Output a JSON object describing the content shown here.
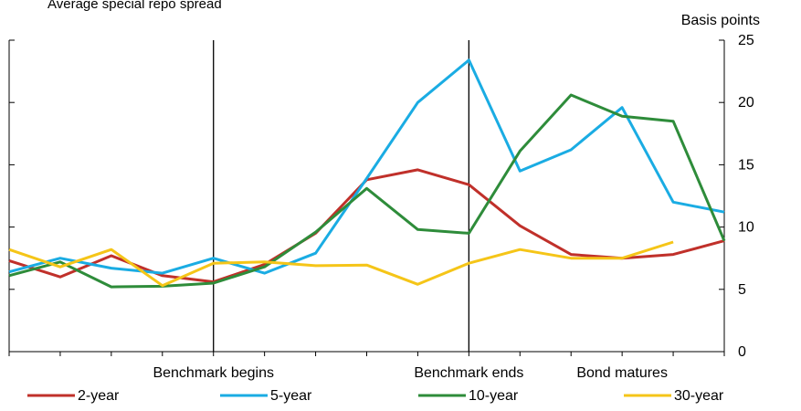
{
  "chart_data": {
    "type": "line",
    "title": "Average special repo spread",
    "ylabel": "Basis points",
    "ylim": [
      0,
      25
    ],
    "yticks": [
      0,
      5,
      10,
      15,
      20,
      25
    ],
    "x": [
      0,
      1,
      2,
      3,
      4,
      5,
      6,
      7,
      8,
      9,
      10,
      11,
      12,
      13,
      14
    ],
    "xlim": [
      0,
      14
    ],
    "annotations": [
      {
        "label": "Benchmark begins",
        "x": 4,
        "vline": true
      },
      {
        "label": "Benchmark ends",
        "x": 9,
        "vline": true
      },
      {
        "label": "Bond matures",
        "x": 12,
        "vline": false
      }
    ],
    "legend_position": "bottom",
    "grid": false,
    "series": [
      {
        "name": "2-year",
        "color": "#c0302a",
        "values": [
          7.3,
          6.0,
          7.7,
          6.1,
          5.6,
          7.0,
          9.5,
          13.8,
          14.6,
          13.4,
          10.1,
          7.8,
          7.5,
          7.8,
          8.9
        ]
      },
      {
        "name": "5-year",
        "color": "#1aace3",
        "values": [
          6.4,
          7.5,
          6.7,
          6.3,
          7.5,
          6.3,
          7.9,
          13.9,
          20.0,
          23.4,
          14.5,
          16.2,
          19.6,
          12.0,
          11.2
        ]
      },
      {
        "name": "10-year",
        "color": "#2e8c3a",
        "values": [
          6.1,
          7.2,
          5.2,
          5.25,
          5.5,
          6.8,
          9.6,
          13.1,
          9.8,
          9.5,
          16.1,
          20.6,
          18.9,
          18.5,
          8.9
        ]
      },
      {
        "name": "30-year",
        "color": "#f5c518",
        "values": [
          8.2,
          6.8,
          8.2,
          5.3,
          7.1,
          7.2,
          6.9,
          6.95,
          5.4,
          7.1,
          8.2,
          7.5,
          7.5,
          8.8,
          null
        ]
      }
    ]
  }
}
